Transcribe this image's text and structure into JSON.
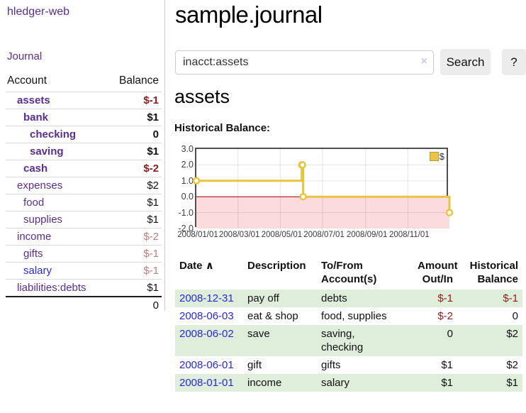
{
  "app": {
    "title": "hledger-web"
  },
  "header": {
    "title": "sample.journal"
  },
  "colors": {
    "link_purple": "#5b2d91",
    "link_blue": "#2929d6",
    "negative_strong": "#8b1d1d",
    "negative_soft": "#bd7d7d",
    "row_green": "#dfeeda",
    "chart_line_gold": "#e9c440",
    "chart_negative_fill": "#fbdbdb",
    "chart_zero_line": "#990000"
  },
  "sidebar": {
    "journal_link": "Journal",
    "table": {
      "col_account": "Account",
      "col_balance": "Balance"
    },
    "accounts": [
      {
        "name": "assets",
        "level": 1,
        "emph": true,
        "balance": "$-1"
      },
      {
        "name": "bank",
        "level": 2,
        "emph": true,
        "balance": "$1"
      },
      {
        "name": "checking",
        "level": 3,
        "emph": true,
        "balance": "0"
      },
      {
        "name": "saving",
        "level": 3,
        "emph": true,
        "balance": "$1"
      },
      {
        "name": "cash",
        "level": 2,
        "emph": true,
        "balance": "$-2"
      },
      {
        "name": "expenses",
        "level": 1,
        "emph": false,
        "balance": "$2"
      },
      {
        "name": "food",
        "level": 2,
        "emph": false,
        "balance": "$1"
      },
      {
        "name": "supplies",
        "level": 2,
        "emph": false,
        "balance": "$1"
      },
      {
        "name": "income",
        "level": 1,
        "emph": false,
        "balance": "$-2"
      },
      {
        "name": "gifts",
        "level": 2,
        "emph": false,
        "balance": "$-1"
      },
      {
        "name": "salary",
        "level": 2,
        "emph": false,
        "balance": "$-1",
        "link_variant": "blue"
      },
      {
        "name": "liabilities:debts",
        "level": 1,
        "emph": false,
        "balance": "$1"
      }
    ],
    "total": "0"
  },
  "search": {
    "value": "inacct:assets",
    "clear_icon": "×",
    "button": "Search",
    "help_button": "?"
  },
  "account_page": {
    "title": "assets",
    "chart_label": "Historical Balance:"
  },
  "chart_data": {
    "type": "line",
    "title": "Historical Balance:",
    "step": true,
    "series": [
      {
        "name": "$",
        "color": "#e9c440",
        "points": [
          {
            "date": "2008-01-01",
            "value": 1
          },
          {
            "date": "2008-06-01",
            "value": 2
          },
          {
            "date": "2008-06-02",
            "value": 2
          },
          {
            "date": "2008-06-03",
            "value": 0
          },
          {
            "date": "2008-12-31",
            "value": -1
          }
        ]
      }
    ],
    "ylim": [
      -2,
      3
    ],
    "yticks": [
      "3.0",
      "2.0",
      "1.0",
      "0.0",
      "-1.0",
      "-2.0"
    ],
    "xticks": [
      "2008/01/01",
      "2008/03/01",
      "2008/05/01",
      "2008/07/01",
      "2008/09/01",
      "2008/11/01"
    ],
    "legend_position": "top-right",
    "grid": true,
    "negative_region_shaded": true
  },
  "register": {
    "headers": {
      "date": "Date",
      "sort_icon": "∧",
      "description": "Description",
      "accounts": "To/From\nAccount(s)",
      "amount": "Amount\nOut/In",
      "balance": "Historical\nBalance"
    },
    "rows": [
      {
        "date": "2008-12-31",
        "description": "pay off",
        "accounts": "debts",
        "amount": "$-1",
        "balance": "$-1"
      },
      {
        "date": "2008-06-03",
        "description": "eat & shop",
        "accounts": "food, supplies",
        "amount": "$-2",
        "balance": "0"
      },
      {
        "date": "2008-06-02",
        "description": "save",
        "accounts": "saving, checking",
        "amount": "0",
        "balance": "$2"
      },
      {
        "date": "2008-06-01",
        "description": "gift",
        "accounts": "gifts",
        "amount": "$1",
        "balance": "$2"
      },
      {
        "date": "2008-01-01",
        "description": "income",
        "accounts": "salary",
        "amount": "$1",
        "balance": "$1"
      }
    ]
  }
}
